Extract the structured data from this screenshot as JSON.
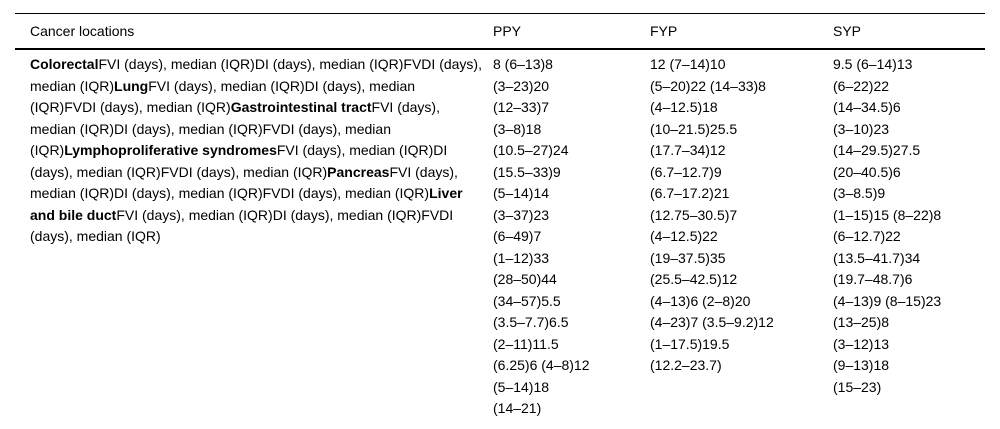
{
  "colors": {
    "background": "#ffffff",
    "text": "#000000",
    "rule": "#000000"
  },
  "table": {
    "headers": {
      "locations": "Cancer locations",
      "ppy": "PPY",
      "fyp": "FYP",
      "syp": "SYP"
    },
    "cancer_locations_segments": [
      {
        "text": "Colorectal",
        "bold": true
      },
      {
        "text": "FVI (days), median (IQR)DI (days), median (IQR)FVDI (days), median (IQR)",
        "bold": false
      },
      {
        "text": "Lung",
        "bold": true
      },
      {
        "text": "FVI (days), median (IQR)DI (days), median (IQR)FVDI (days), median (IQR)",
        "bold": false
      },
      {
        "text": "Gastrointestinal tract",
        "bold": true
      },
      {
        "text": "FVI (days), median (IQR)DI (days), median (IQR)FVDI (days), median (IQR)",
        "bold": false
      },
      {
        "text": "Lymphoproliferative syndromes",
        "bold": true
      },
      {
        "text": "FVI (days), median (IQR)DI (days), median (IQR)FVDI (days), median (IQR)",
        "bold": false
      },
      {
        "text": "Pancreas",
        "bold": true
      },
      {
        "text": "FVI (days), median (IQR)DI (days), median (IQR)FVDI (days), median (IQR)",
        "bold": false
      },
      {
        "text": "Liver and bile duct",
        "bold": true
      },
      {
        "text": "FVI (days), median (IQR)DI (days), median (IQR)FVDI (days), median (IQR)",
        "bold": false
      }
    ],
    "columns": {
      "ppy_lines": [
        "8 (6–13)8",
        "(3–23)20",
        "(12–33)7",
        "(3–8)18",
        "(10.5–27)24",
        "(15.5–33)9",
        "(5–14)14",
        "(3–37)23",
        "(6–49)7",
        "(1–12)33",
        "(28–50)44",
        "(34–57)5.5",
        "(3.5–7.7)6.5",
        "(2–11)11.5",
        "(6.25)6 (4–8)12",
        "(5–14)18",
        "(14–21)"
      ],
      "fyp_lines": [
        "12 (7–14)10",
        "(5–20)22 (14–33)8",
        "(4–12.5)18",
        "(10–21.5)25.5",
        "(17.7–34)12",
        "(6.7–12.7)9",
        "(6.7–17.2)21",
        "(12.75–30.5)7",
        "(4–12.5)22",
        "(19–37.5)35",
        "(25.5–42.5)12",
        "(4–13)6 (2–8)20",
        "(4–23)7 (3.5–9.2)12",
        "(1–17.5)19.5",
        "(12.2–23.7)"
      ],
      "syp_lines": [
        "9.5 (6–14)13",
        "(6–22)22",
        "(14–34.5)6",
        "(3–10)23",
        "(14–29.5)27.5",
        "(20–40.5)6",
        "(3–8.5)9",
        "(1–15)15 (8–22)8",
        "(6–12.7)22",
        "(13.5–41.7)34",
        "(19.7–48.7)6",
        "(4–13)9 (8–15)23",
        "(13–25)8",
        "(3–12)13",
        "(9–13)18",
        "(15–23)"
      ]
    }
  }
}
